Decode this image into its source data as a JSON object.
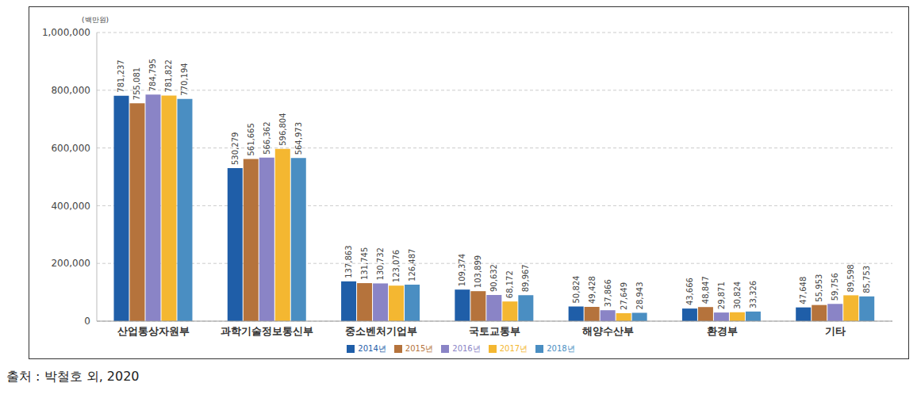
{
  "chart_data": {
    "type": "bar",
    "y_label": "(백만원)",
    "source": "출처 : 박철호 외, 2020",
    "categories": [
      "산업통상자원부",
      "과학기술정보통신부",
      "중소벤처기업부",
      "국토교통부",
      "해양수산부",
      "환경부",
      "기타"
    ],
    "series": [
      {
        "name": "2014년",
        "color": "#1f5ea8",
        "values": [
          781237,
          530279,
          137863,
          109374,
          50824,
          43666,
          47648
        ],
        "value_labels": [
          "781,237",
          "530,279",
          "137,863",
          "109,374",
          "50,824",
          "43,666",
          "47,648"
        ]
      },
      {
        "name": "2015년",
        "color": "#b5733c",
        "values": [
          755081,
          561665,
          131745,
          103899,
          49428,
          48847,
          55953
        ],
        "value_labels": [
          "755,081",
          "561,665",
          "131,745",
          "103,899",
          "49,428",
          "48,847",
          "55,953"
        ]
      },
      {
        "name": "2016년",
        "color": "#8a84c6",
        "values": [
          784795,
          566362,
          130732,
          90632,
          37866,
          29871,
          59756
        ],
        "value_labels": [
          "784,795",
          "566,362",
          "130,732",
          "90,632",
          "37,866",
          "29,871",
          "59,756"
        ]
      },
      {
        "name": "2017년",
        "color": "#f4b731",
        "values": [
          781822,
          596804,
          123076,
          68172,
          27649,
          30824,
          89598
        ],
        "value_labels": [
          "781,822",
          "596,804",
          "123,076",
          "68,172",
          "27,649",
          "30,824",
          "89,598"
        ]
      },
      {
        "name": "2018년",
        "color": "#4a8ec2",
        "values": [
          770194,
          564973,
          126487,
          89967,
          28943,
          33326,
          85753
        ],
        "value_labels": [
          "770,194",
          "564,973",
          "126,487",
          "89,967",
          "28,943",
          "33,326",
          "85,753"
        ]
      }
    ],
    "ylim": [
      0,
      1000000
    ],
    "yticks": [
      0,
      {
        "value": 200000,
        "label": "200,000"
      },
      {
        "value": 400000,
        "label": "400,000"
      },
      {
        "value": 600000,
        "label": "600,000"
      },
      {
        "value": 800000,
        "label": "800,000"
      },
      {
        "value": 1000000,
        "label": "1,000,000"
      }
    ],
    "grid": true,
    "legend": "bottom",
    "data_labels": true
  }
}
